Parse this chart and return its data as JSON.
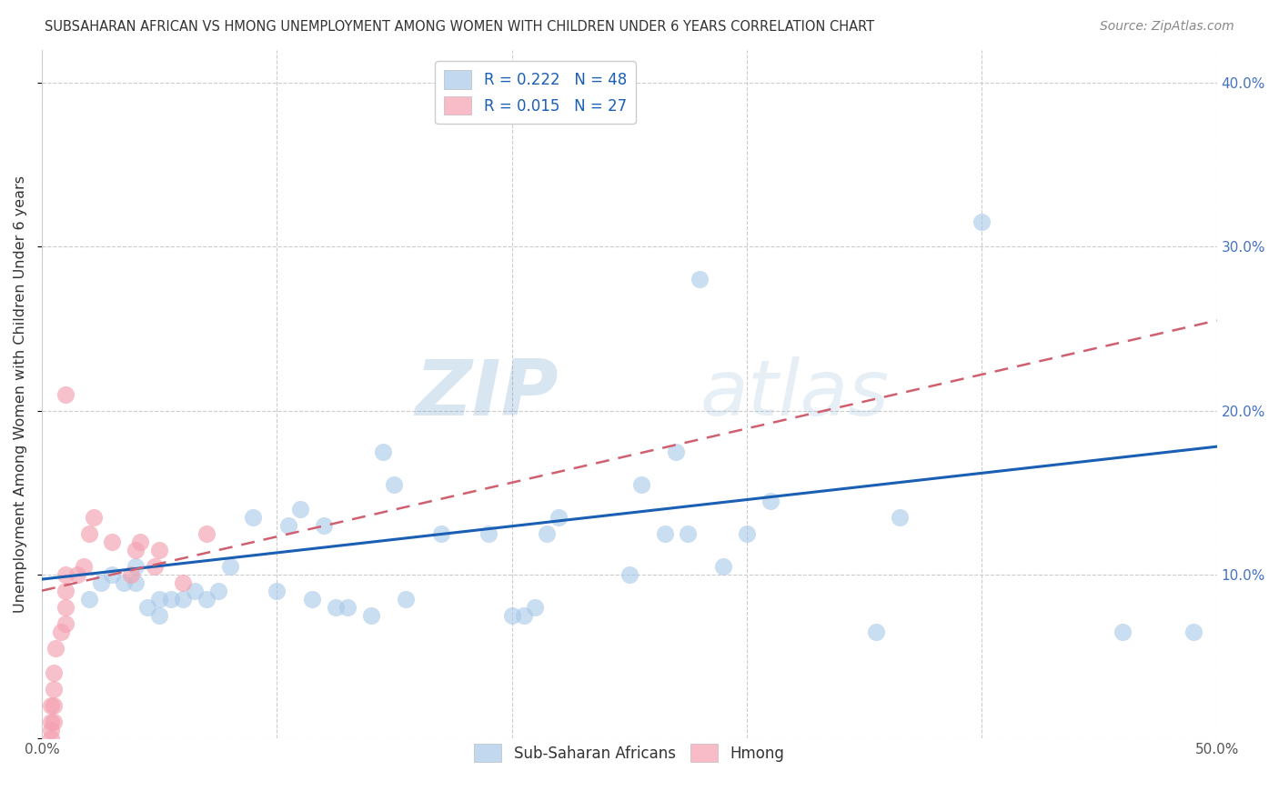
{
  "title": "SUBSAHARAN AFRICAN VS HMONG UNEMPLOYMENT AMONG WOMEN WITH CHILDREN UNDER 6 YEARS CORRELATION CHART",
  "source": "Source: ZipAtlas.com",
  "ylabel": "Unemployment Among Women with Children Under 6 years",
  "xlim": [
    0.0,
    0.5
  ],
  "ylim": [
    0.0,
    0.42
  ],
  "blue_color": "#a8c8e8",
  "pink_color": "#f4a0b0",
  "line_blue": "#1a5fb4",
  "line_pink": "#d06070",
  "watermark_zip": "ZIP",
  "watermark_atlas": "atlas",
  "blue_R": 0.222,
  "blue_N": 48,
  "pink_R": 0.015,
  "pink_N": 27,
  "blue_scatter_x": [
    0.02,
    0.025,
    0.03,
    0.035,
    0.04,
    0.04,
    0.045,
    0.05,
    0.05,
    0.055,
    0.06,
    0.065,
    0.07,
    0.075,
    0.08,
    0.09,
    0.1,
    0.105,
    0.11,
    0.115,
    0.12,
    0.125,
    0.13,
    0.14,
    0.145,
    0.15,
    0.155,
    0.17,
    0.19,
    0.2,
    0.205,
    0.21,
    0.215,
    0.22,
    0.25,
    0.255,
    0.265,
    0.27,
    0.275,
    0.28,
    0.29,
    0.3,
    0.31,
    0.355,
    0.365,
    0.4,
    0.46,
    0.49
  ],
  "blue_scatter_y": [
    0.085,
    0.095,
    0.1,
    0.095,
    0.095,
    0.105,
    0.08,
    0.075,
    0.085,
    0.085,
    0.085,
    0.09,
    0.085,
    0.09,
    0.105,
    0.135,
    0.09,
    0.13,
    0.14,
    0.085,
    0.13,
    0.08,
    0.08,
    0.075,
    0.175,
    0.155,
    0.085,
    0.125,
    0.125,
    0.075,
    0.075,
    0.08,
    0.125,
    0.135,
    0.1,
    0.155,
    0.125,
    0.175,
    0.125,
    0.28,
    0.105,
    0.125,
    0.145,
    0.065,
    0.135,
    0.315,
    0.065,
    0.065
  ],
  "pink_scatter_x": [
    0.004,
    0.004,
    0.004,
    0.004,
    0.005,
    0.005,
    0.005,
    0.005,
    0.006,
    0.008,
    0.01,
    0.01,
    0.01,
    0.01,
    0.01,
    0.015,
    0.018,
    0.02,
    0.022,
    0.03,
    0.038,
    0.04,
    0.042,
    0.048,
    0.05,
    0.06,
    0.07
  ],
  "pink_scatter_y": [
    0.0,
    0.005,
    0.01,
    0.02,
    0.01,
    0.02,
    0.03,
    0.04,
    0.055,
    0.065,
    0.07,
    0.08,
    0.09,
    0.1,
    0.21,
    0.1,
    0.105,
    0.125,
    0.135,
    0.12,
    0.1,
    0.115,
    0.12,
    0.105,
    0.115,
    0.095,
    0.125
  ],
  "blue_line_x0": 0.0,
  "blue_line_x1": 0.5,
  "blue_line_y0": 0.097,
  "blue_line_y1": 0.178,
  "pink_line_x0": 0.0,
  "pink_line_x1": 0.5,
  "pink_line_y0": 0.09,
  "pink_line_y1": 0.255
}
